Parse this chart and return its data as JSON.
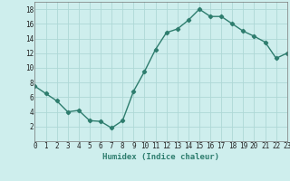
{
  "x": [
    0,
    1,
    2,
    3,
    4,
    5,
    6,
    7,
    8,
    9,
    10,
    11,
    12,
    13,
    14,
    15,
    16,
    17,
    18,
    19,
    20,
    21,
    22,
    23
  ],
  "y": [
    7.5,
    6.5,
    5.5,
    4.0,
    4.2,
    2.8,
    2.7,
    1.8,
    2.8,
    6.8,
    9.5,
    12.5,
    14.8,
    15.3,
    16.5,
    18.0,
    17.0,
    17.0,
    16.0,
    15.0,
    14.3,
    13.5,
    11.3,
    12.0
  ],
  "xlabel": "Humidex (Indice chaleur)",
  "ylabel": "",
  "xlim": [
    0,
    23
  ],
  "ylim": [
    0,
    19
  ],
  "yticks": [
    2,
    4,
    6,
    8,
    10,
    12,
    14,
    16,
    18
  ],
  "xticks": [
    0,
    1,
    2,
    3,
    4,
    5,
    6,
    7,
    8,
    9,
    10,
    11,
    12,
    13,
    14,
    15,
    16,
    17,
    18,
    19,
    20,
    21,
    22,
    23
  ],
  "line_color": "#2e7d6e",
  "bg_color": "#ceeeed",
  "grid_color": "#aed8d6",
  "marker": "D",
  "marker_size": 2.2,
  "line_width": 1.0,
  "tick_fontsize": 5.5,
  "xlabel_fontsize": 6.5
}
